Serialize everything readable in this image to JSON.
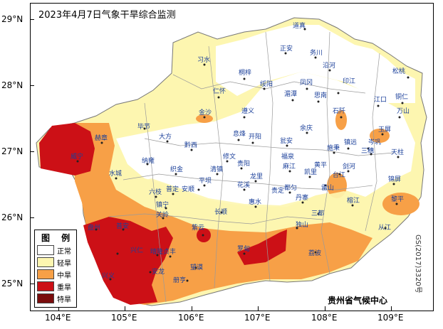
{
  "title": "2023年4月7日气象干旱综合监测",
  "credit": "贵州省气候中心",
  "map_number": "GS(2017)3320号",
  "y_axis_labels": [
    "29°N",
    "28°N",
    "27°N",
    "26°N",
    "25°N"
  ],
  "x_axis_labels": [
    "104°E",
    "105°E",
    "106°E",
    "107°E",
    "108°E",
    "109°E"
  ],
  "legend": {
    "title": "图 例",
    "items": [
      {
        "label": "正常",
        "color": "#ffffff"
      },
      {
        "label": "轻旱",
        "color": "#fdf6b0"
      },
      {
        "label": "中旱",
        "color": "#f7a047"
      },
      {
        "label": "重旱",
        "color": "#cc1016"
      },
      {
        "label": "特旱",
        "color": "#7a0c0c"
      }
    ]
  },
  "place_names": [
    "道真",
    "正安",
    "务川",
    "沿河",
    "松桃",
    "习水",
    "桐梓",
    "绥阳",
    "凤冈",
    "印江",
    "江口",
    "铜仁",
    "仁怀",
    "湄潭",
    "思南",
    "遵义",
    "余庆",
    "石阡",
    "万山",
    "金沙",
    "息烽",
    "开阳",
    "瓮安",
    "镇远",
    "岑巩",
    "玉屏",
    "毕节",
    "大方",
    "黔西",
    "修文",
    "施秉",
    "三穗",
    "天柱",
    "赫章",
    "纳雍",
    "织金",
    "清镇",
    "贵阳",
    "麻江",
    "剑河",
    "锦屏",
    "威宁",
    "六枝",
    "平坝",
    "龙里",
    "凯里",
    "台江",
    "黎平",
    "安顺",
    "普定",
    "花溪",
    "都匀",
    "雷山",
    "榕江",
    "水城",
    "镇宁",
    "关岭",
    "长顺",
    "惠水",
    "丹寨",
    "三都",
    "从江",
    "盘州",
    "晴隆",
    "紫云",
    "独山",
    "荔波",
    "普安",
    "贞丰",
    "望谟",
    "罗甸",
    "兴仁",
    "安龙",
    "册亨",
    "兴义",
    "黄平",
    "福泉",
    "贵定"
  ]
}
